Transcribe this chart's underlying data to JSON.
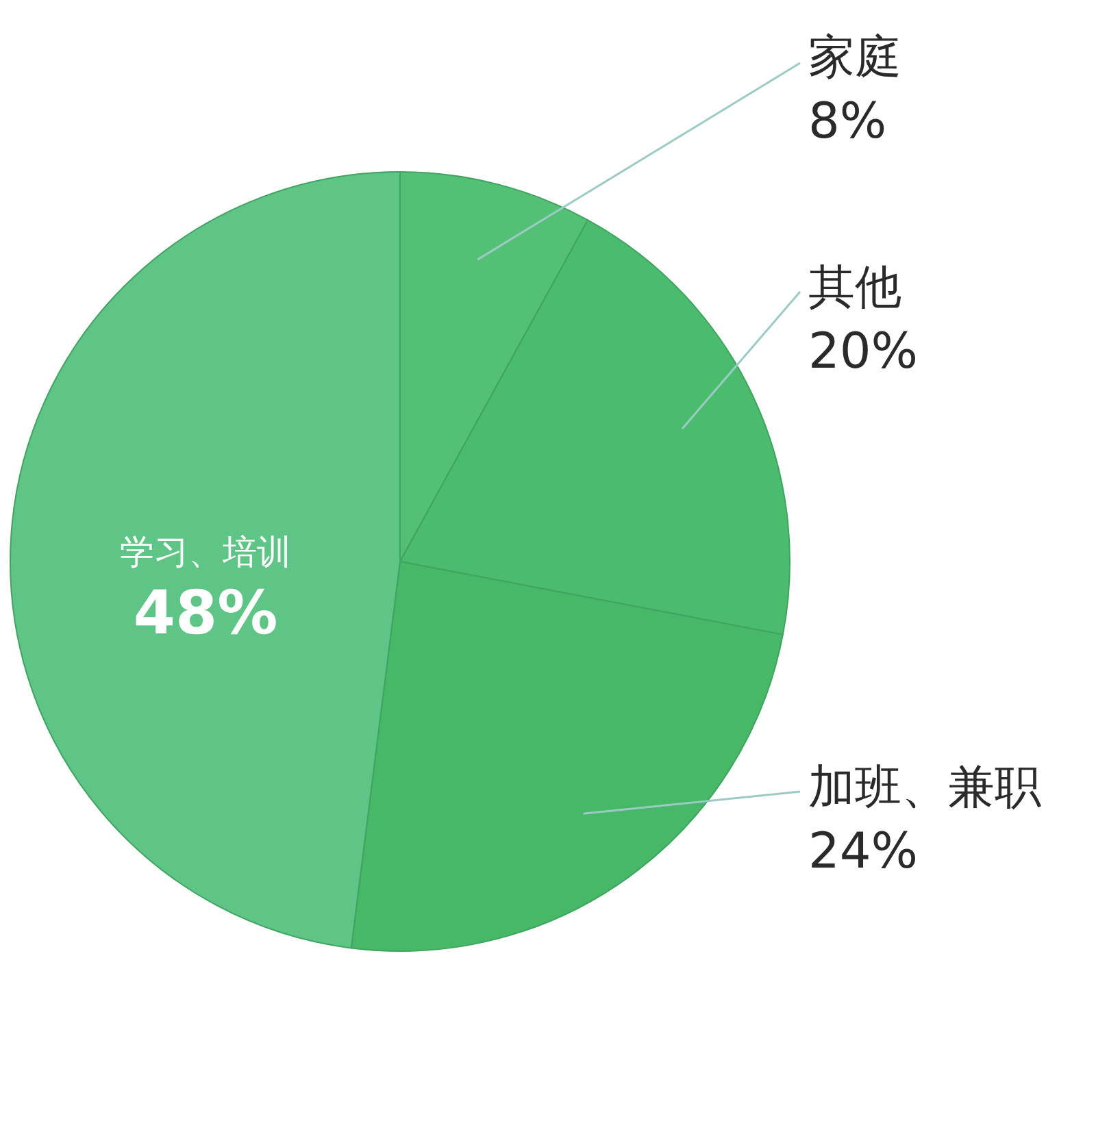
{
  "chart_data": {
    "type": "pie",
    "categories": [
      "家庭",
      "其他",
      "加班、兼职",
      "学习、培训"
    ],
    "values": [
      8,
      20,
      24,
      48
    ],
    "colors": [
      "#53c076",
      "#4bbc6d",
      "#46b868",
      "#5ec586"
    ],
    "value_labels": [
      "8%",
      "20%",
      "24%",
      "48%"
    ]
  }
}
